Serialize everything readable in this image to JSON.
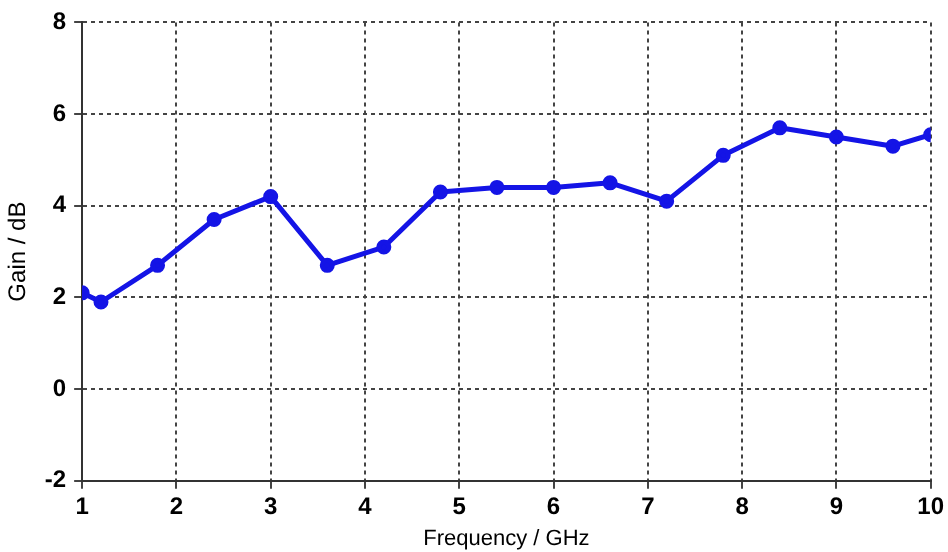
{
  "chart_data": {
    "type": "line",
    "xlabel": "Frequency / GHz",
    "ylabel": "Gain / dB",
    "x": [
      1,
      1.2,
      1.8,
      2.4,
      3,
      3.6,
      4.2,
      4.8,
      5.4,
      6,
      6.6,
      7.2,
      7.8,
      8.4,
      9,
      9.6,
      10
    ],
    "series": [
      {
        "color": "#1414e6",
        "values": [
          2.1,
          1.9,
          2.7,
          3.7,
          4.2,
          2.7,
          3.1,
          4.3,
          4.4,
          4.4,
          4.5,
          4.1,
          5.1,
          5.7,
          5.5,
          5.3,
          5.55
        ]
      }
    ],
    "xlim": [
      1,
      10
    ],
    "xticks": [
      1,
      2,
      3,
      4,
      5,
      6,
      7,
      8,
      9,
      10
    ],
    "ylim": [
      -2,
      8
    ],
    "yticks": [
      -2,
      0,
      2,
      4,
      6,
      8
    ],
    "grid": true,
    "legend": false,
    "marker": "circle",
    "line_style": "solid"
  }
}
